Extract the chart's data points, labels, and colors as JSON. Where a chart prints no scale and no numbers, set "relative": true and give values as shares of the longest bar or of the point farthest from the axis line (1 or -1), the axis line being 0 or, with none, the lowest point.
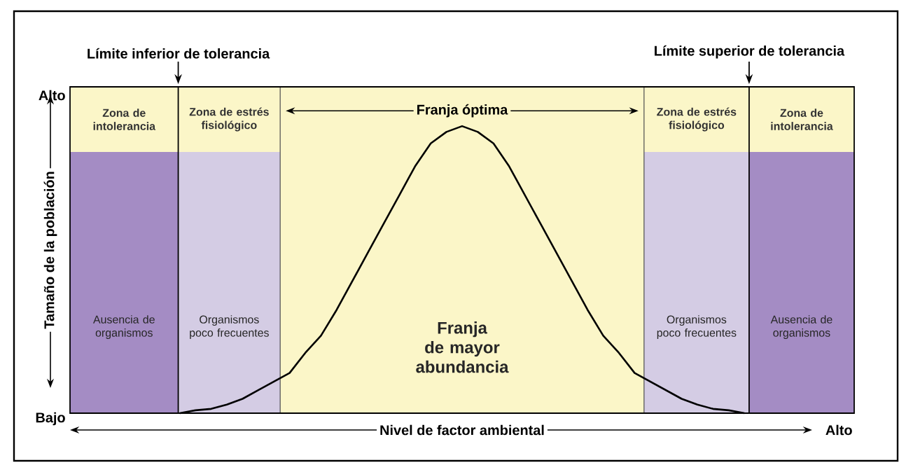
{
  "chart_data": {
    "type": "line",
    "relative": true,
    "xlabel": "Nivel de factor ambiental",
    "ylabel": "Tamaño de la población",
    "marker": "none",
    "line_style": "solid",
    "categories": [
      null,
      null,
      null,
      null,
      null,
      null,
      null,
      null,
      null,
      null,
      null,
      null,
      null,
      null,
      null,
      null,
      null,
      null,
      null,
      null,
      null,
      null,
      null,
      null,
      null,
      null,
      null,
      null,
      null,
      null,
      null,
      null,
      null,
      null,
      null,
      null,
      null,
      null,
      null,
      null,
      null,
      null,
      null,
      null,
      null,
      null,
      null,
      null,
      null,
      null,
      null
    ],
    "series": [
      {
        "color": "#000000",
        "values": [
          null,
          null,
          null,
          null,
          null,
          null,
          null,
          0,
          0.01,
          0.015,
          0.03,
          0.05,
          0.08,
          0.11,
          0.14,
          0.21,
          0.27,
          0.36,
          0.46,
          0.56,
          0.66,
          0.76,
          0.86,
          0.94,
          0.98,
          1,
          0.98,
          0.94,
          0.86,
          0.76,
          0.66,
          0.56,
          0.46,
          0.36,
          0.27,
          0.21,
          0.14,
          0.11,
          0.08,
          0.05,
          0.03,
          0.015,
          0.01,
          0,
          null,
          null,
          null,
          null,
          null,
          null,
          null
        ]
      }
    ],
    "annotations": [
      "Alto",
      "Bajo",
      "Alto",
      "Límite inferior de tolerancia",
      "Límite superior de tolerancia",
      "Zona de intolerancia",
      "Zona de estrés fisiológico",
      "Franja óptima",
      "Zona de estrés fisiológico",
      "Zona de intolerancia",
      "Ausencia de organismos",
      "Organismos poco frecuentes",
      "Franja de mayor abundancia",
      "Organismos poco frecuentes",
      "Ausencia de organismos"
    ]
  }
}
